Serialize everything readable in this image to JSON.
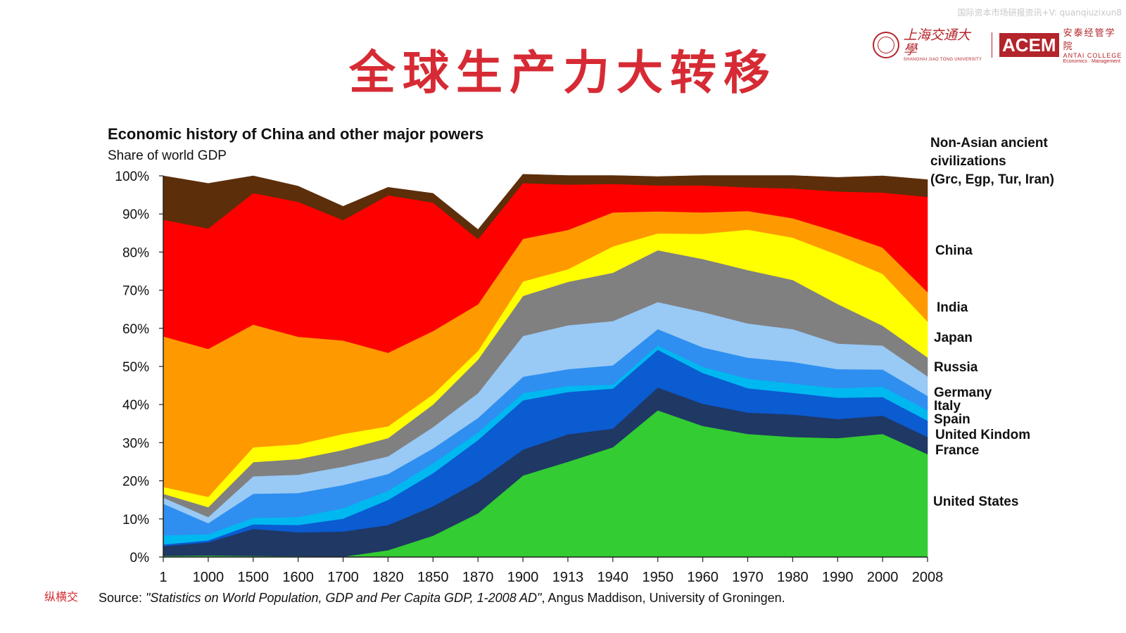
{
  "header": {
    "watermark": "国际资本市场研报资讯+V: quanqiuzixun8",
    "title": "全球生产力大转移",
    "logo_sjtu_cn": "上海交通大學",
    "logo_sjtu_en": "SHANGHAI JIAO TONG UNIVERSITY",
    "logo_acem_mark": "ACEM",
    "logo_acem_cn": "安泰经管学院",
    "logo_acem_en": "ANTAI COLLEGE",
    "logo_acem_sub": "Economics · Management"
  },
  "footer": {
    "side_text": "纵横交"
  },
  "colors": {
    "us": "#33cc33",
    "france": "#1f3864",
    "uk": "#0b5bd1",
    "spain": "#00b8f0",
    "italy": "#2e8ff0",
    "germany": "#99c9f5",
    "russia": "#808080",
    "japan": "#ffff00",
    "india": "#ff9900",
    "china": "#ff0000",
    "ancient": "#5c2e0a"
  },
  "chart_data": {
    "type": "area",
    "stacked": true,
    "title": "Economic history  of China and other major powers",
    "subtitle": "Share of world GDP",
    "source_prefix": "Source: ",
    "source_italic": "\"Statistics on World Population, GDP and Per Capita GDP, 1-2008 AD\"",
    "source_suffix": ", Angus Maddison, University of Groningen.",
    "ylim": [
      0,
      100
    ],
    "yticks": [
      "0%",
      "10%",
      "20%",
      "30%",
      "40%",
      "50%",
      "60%",
      "70%",
      "80%",
      "90%",
      "100%"
    ],
    "categories": [
      "1",
      "1000",
      "1500",
      "1600",
      "1700",
      "1820",
      "1850",
      "1870",
      "1900",
      "1913",
      "1940",
      "1950",
      "1960",
      "1970",
      "1980",
      "1990",
      "2000",
      "2008"
    ],
    "grid": false,
    "legend": "right, direct labels",
    "series": [
      {
        "name": "United States",
        "key": "us",
        "values": [
          0.3,
          0.4,
          0.3,
          0.2,
          0.1,
          1.8,
          5.6,
          11.5,
          21.4,
          25.0,
          28.8,
          38.5,
          34.4,
          32.3,
          31.5,
          31.2,
          32.3,
          27.0
        ]
      },
      {
        "name": "France",
        "key": "france",
        "values": [
          2.6,
          3.5,
          7.1,
          6.3,
          6.6,
          6.6,
          7.7,
          8.3,
          6.8,
          7.2,
          4.9,
          6.0,
          5.8,
          5.6,
          5.9,
          5.0,
          4.8,
          4.5
        ]
      },
      {
        "name": "United Kindom",
        "key": "uk",
        "values": [
          0.4,
          0.5,
          1.2,
          1.9,
          3.4,
          6.6,
          8.7,
          10.9,
          12.9,
          11.1,
          10.5,
          9.9,
          8.1,
          6.4,
          5.7,
          5.6,
          4.9,
          4.3
        ]
      },
      {
        "name": "Spain",
        "key": "spain",
        "values": [
          2.4,
          1.6,
          1.7,
          2.1,
          2.7,
          2.4,
          2.6,
          2.0,
          1.9,
          1.6,
          1.0,
          1.1,
          1.6,
          2.5,
          2.4,
          2.5,
          2.7,
          2.7
        ]
      },
      {
        "name": "Italy",
        "key": "italy",
        "values": [
          8.3,
          2.9,
          6.3,
          6.3,
          6.1,
          4.4,
          3.9,
          3.8,
          4.3,
          4.4,
          5.1,
          4.3,
          5.1,
          5.5,
          5.7,
          5.0,
          4.5,
          3.8
        ]
      },
      {
        "name": "Germany",
        "key": "germany",
        "values": [
          1.6,
          1.6,
          4.6,
          4.8,
          4.8,
          4.6,
          5.6,
          6.5,
          10.7,
          11.5,
          11.6,
          7.1,
          9.3,
          9.0,
          8.6,
          6.7,
          6.3,
          5.1
        ]
      },
      {
        "name": "Russia",
        "key": "russia",
        "values": [
          1.0,
          2.6,
          3.7,
          4.1,
          4.4,
          4.8,
          5.9,
          8.8,
          10.5,
          11.4,
          12.7,
          13.6,
          13.9,
          14.0,
          12.9,
          10.4,
          5.2,
          5.0
        ]
      },
      {
        "name": "Japan",
        "key": "japan",
        "values": [
          1.8,
          2.7,
          3.9,
          3.9,
          4.2,
          3.1,
          2.7,
          2.3,
          3.8,
          3.3,
          6.9,
          4.4,
          6.6,
          10.6,
          11.1,
          12.9,
          13.6,
          9.4
        ]
      },
      {
        "name": "India",
        "key": "india",
        "values": [
          39.5,
          38.8,
          32.2,
          28.2,
          24.5,
          19.3,
          16.6,
          12.2,
          11.2,
          10.3,
          8.9,
          5.8,
          5.6,
          4.9,
          5.1,
          6.0,
          6.9,
          7.7
        ]
      },
      {
        "name": "China",
        "key": "china",
        "values": [
          30.6,
          31.6,
          34.5,
          35.4,
          31.6,
          41.3,
          33.7,
          17.1,
          14.6,
          11.9,
          7.5,
          6.8,
          7.1,
          6.2,
          7.8,
          10.6,
          14.4,
          25.0
        ]
      },
      {
        "name": "Non-Asian ancient civilizations (Grc, Egp, Tur, Iran)",
        "key": "ancient",
        "values": [
          11.5,
          11.8,
          4.5,
          4.1,
          3.6,
          2.1,
          2.4,
          2.5,
          2.3,
          2.4,
          2.2,
          2.3,
          2.6,
          3.1,
          3.4,
          3.7,
          4.4,
          4.5
        ]
      }
    ],
    "labels": {
      "ancient": [
        "Non-Asian ancient",
        "civilizations",
        "(Grc, Egp, Tur, Iran)"
      ],
      "china": "China",
      "india": "India",
      "japan": "Japan",
      "russia": "Russia",
      "germany": "Germany",
      "italy": "Italy",
      "spain": "Spain",
      "uk": "United Kindom",
      "france": "France",
      "us": "United States"
    }
  }
}
